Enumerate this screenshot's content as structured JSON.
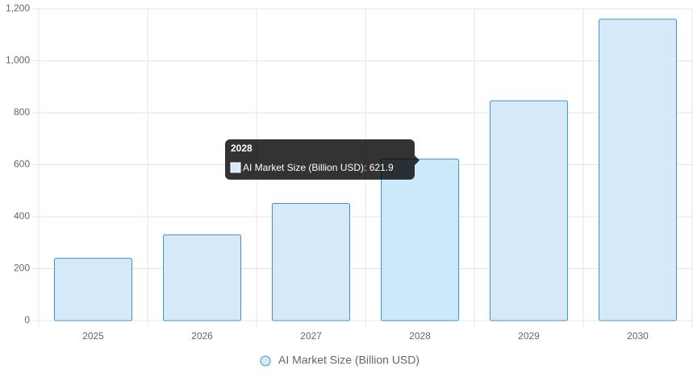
{
  "chart_data": {
    "type": "bar",
    "categories": [
      "2025",
      "2026",
      "2027",
      "2028",
      "2029",
      "2030"
    ],
    "series": [
      {
        "name": "AI Market Size (Billion USD)",
        "color": "#3e95cd",
        "fill": "#d5e9f9",
        "values": [
          240,
          330,
          451,
          621.9,
          846,
          1160
        ]
      }
    ],
    "ylim": [
      0,
      1200
    ],
    "yticks": [
      0,
      200,
      400,
      600,
      800,
      {
        "value": 1000,
        "label": "1,000"
      },
      {
        "value": 1200,
        "label": "1,200"
      }
    ],
    "grid": true,
    "legend": "bottom",
    "tooltip": {
      "title": "2028",
      "label": "AI Market Size (Billion USD): 621.9"
    }
  }
}
